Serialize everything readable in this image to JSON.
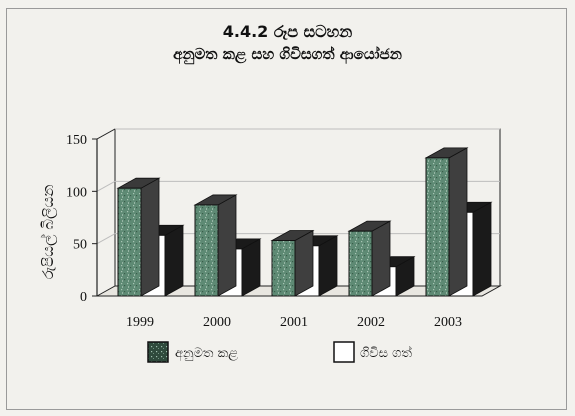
{
  "chart_data": {
    "type": "bar",
    "title": "4.4.2 රූප සටහන",
    "subtitle": "අනුමත කළ සහ ගිවිසගත් ආයෝජන",
    "ylabel": "රුපියල් බිලියන",
    "xlabel": "",
    "categories": [
      "1999",
      "2000",
      "2001",
      "2002",
      "2003"
    ],
    "series": [
      {
        "name": "අනුමත කළ",
        "values": [
          103,
          87,
          53,
          62,
          132
        ]
      },
      {
        "name": "ගිවිස ගත්",
        "values": [
          58,
          45,
          48,
          28,
          80
        ]
      }
    ],
    "ylim": [
      0,
      150
    ],
    "yticks": [
      0,
      50,
      100,
      150
    ],
    "grid": true,
    "style": "3d-clustered",
    "legend_position": "bottom",
    "colors": {
      "series1_face": "#5e8a74",
      "series1_side": "#3f3f3f",
      "series2_face": "#ffffff",
      "shadow": "#1a1a1a",
      "grid": "#bdbdbd"
    }
  }
}
